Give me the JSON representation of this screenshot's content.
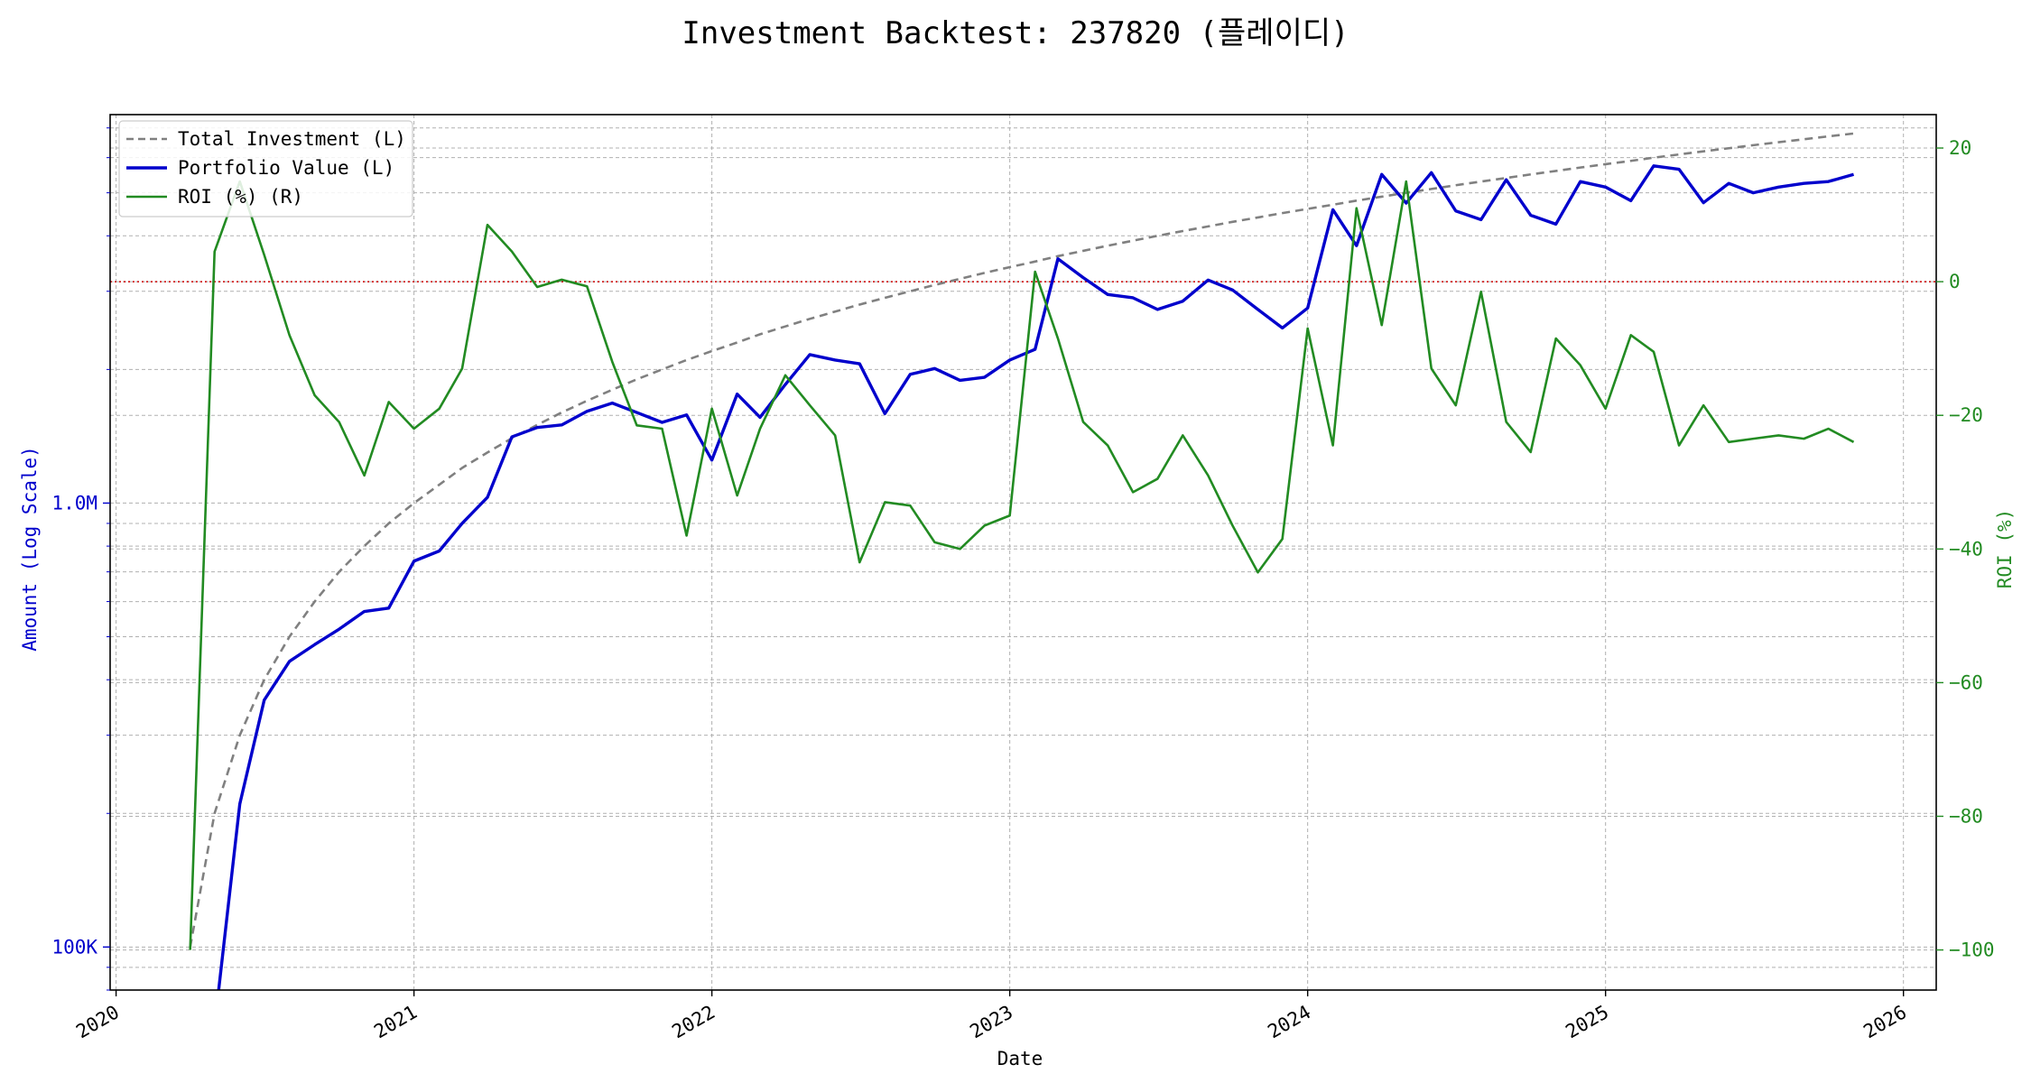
{
  "chart_data": {
    "type": "line",
    "title": "Investment Backtest: 237820 (플레이디)",
    "xlabel": "Date",
    "ylabel_left": "Amount (Log Scale)",
    "ylabel_right": "ROI (%)",
    "left_scale": "log",
    "left_ylim": [
      80000,
      7500000
    ],
    "right_ylim": [
      -106,
      25
    ],
    "x_ticks": [
      "2020",
      "2021",
      "2022",
      "2023",
      "2024",
      "2025",
      "2026"
    ],
    "left_ticks": [
      {
        "value": 100000,
        "label": "100K"
      },
      {
        "value": 1000000,
        "label": "1.0M"
      }
    ],
    "right_ticks": [
      {
        "value": 20,
        "label": "20"
      },
      {
        "value": 0,
        "label": "0"
      },
      {
        "value": -20,
        "label": "−20"
      },
      {
        "value": -40,
        "label": "−40"
      },
      {
        "value": -60,
        "label": "−60"
      },
      {
        "value": -80,
        "label": "−80"
      },
      {
        "value": -100,
        "label": "−100"
      }
    ],
    "grid": true,
    "legend_position": "top-left",
    "reference_line": {
      "axis": "right",
      "value": 0,
      "color": "#cc0000",
      "style": "dotted"
    },
    "x_dates": [
      "2020-04",
      "2020-05",
      "2020-06",
      "2020-07",
      "2020-08",
      "2020-09",
      "2020-10",
      "2020-11",
      "2020-12",
      "2021-01",
      "2021-02",
      "2021-03",
      "2021-04",
      "2021-05",
      "2021-06",
      "2021-07",
      "2021-08",
      "2021-09",
      "2021-10",
      "2021-11",
      "2021-12",
      "2022-01",
      "2022-02",
      "2022-03",
      "2022-04",
      "2022-05",
      "2022-06",
      "2022-07",
      "2022-08",
      "2022-09",
      "2022-10",
      "2022-11",
      "2022-12",
      "2023-01",
      "2023-02",
      "2023-03",
      "2023-04",
      "2023-05",
      "2023-06",
      "2023-07",
      "2023-08",
      "2023-09",
      "2023-10",
      "2023-11",
      "2023-12",
      "2024-01",
      "2024-02",
      "2024-03",
      "2024-04",
      "2024-05",
      "2024-06",
      "2024-07",
      "2024-08",
      "2024-09",
      "2024-10",
      "2024-11",
      "2024-12",
      "2025-01",
      "2025-02",
      "2025-03",
      "2025-04",
      "2025-05",
      "2025-06",
      "2025-07",
      "2025-08",
      "2025-09",
      "2025-10",
      "2025-11"
    ],
    "series": [
      {
        "name": "Total Investment (L)",
        "axis": "left",
        "color": "#808080",
        "style": "dashed",
        "values": [
          100000,
          200000,
          300000,
          400000,
          500000,
          600000,
          700000,
          800000,
          900000,
          1000000,
          1100000,
          1200000,
          1300000,
          1400000,
          1500000,
          1600000,
          1700000,
          1800000,
          1900000,
          2000000,
          2100000,
          2200000,
          2300000,
          2400000,
          2500000,
          2600000,
          2700000,
          2800000,
          2900000,
          3000000,
          3100000,
          3200000,
          3300000,
          3400000,
          3500000,
          3600000,
          3700000,
          3800000,
          3900000,
          4000000,
          4100000,
          4200000,
          4300000,
          4400000,
          4500000,
          4600000,
          4700000,
          4800000,
          4900000,
          5000000,
          5100000,
          5200000,
          5300000,
          5400000,
          5500000,
          5600000,
          5700000,
          5800000,
          5900000,
          6000000,
          6100000,
          6200000,
          6300000,
          6400000,
          6500000,
          6600000,
          6700000,
          6800000
        ]
      },
      {
        "name": "Portfolio Value (L)",
        "axis": "left",
        "color": "#0000cc",
        "style": "solid",
        "values": [
          null,
          60000,
          210000,
          360000,
          440000,
          480000,
          520000,
          570000,
          580000,
          740000,
          780000,
          900000,
          1030000,
          1410000,
          1480000,
          1500000,
          1610000,
          1680000,
          1600000,
          1520000,
          1580000,
          1250000,
          1760000,
          1560000,
          1850000,
          2160000,
          2100000,
          2060000,
          1590000,
          1950000,
          2010000,
          1890000,
          1920000,
          2100000,
          2220000,
          3550000,
          3220000,
          2950000,
          2900000,
          2730000,
          2850000,
          3180000,
          3020000,
          2730000,
          2480000,
          2750000,
          4580000,
          3800000,
          5500000,
          4740000,
          5550000,
          4550000,
          4350000,
          5350000,
          4450000,
          4250000,
          5300000,
          5150000,
          4800000,
          5750000,
          5650000,
          4750000,
          5250000,
          5000000,
          5150000,
          5250000,
          5300000,
          5500000
        ]
      },
      {
        "name": "ROI (%) (R)",
        "axis": "right",
        "color": "#228b22",
        "style": "solid",
        "values": [
          -100,
          4.5,
          15,
          4,
          -8,
          -17,
          -21,
          -29,
          -18,
          -22,
          -19,
          -13,
          8.5,
          4.5,
          -0.8,
          0.3,
          -0.7,
          -12,
          -21.5,
          -22,
          -38,
          -19,
          -32,
          -22,
          -14,
          -18.5,
          -23,
          -42,
          -33,
          -33.5,
          -39,
          -40,
          -36.5,
          -35,
          1.5,
          -8.5,
          -21,
          -24.5,
          -31.5,
          -29.5,
          -23,
          -29,
          -36.5,
          -43.5,
          -38.5,
          -7,
          -24.5,
          11,
          -6.5,
          15,
          -13,
          -18.5,
          -1.5,
          -21,
          -25.5,
          -8.5,
          -12.5,
          -19,
          -8,
          -10.5,
          -24.5,
          -18.5,
          -24,
          -23.5,
          -23,
          -23.5,
          -22,
          -24
        ]
      }
    ]
  }
}
